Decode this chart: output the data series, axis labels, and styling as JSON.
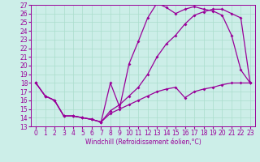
{
  "xlabel": "Windchill (Refroidissement éolien,°C)",
  "bg_color": "#cceee8",
  "line_color": "#990099",
  "xlim": [
    -0.5,
    23.5
  ],
  "ylim": [
    13,
    27
  ],
  "yticks": [
    13,
    14,
    15,
    16,
    17,
    18,
    19,
    20,
    21,
    22,
    23,
    24,
    25,
    26,
    27
  ],
  "xticks": [
    0,
    1,
    2,
    3,
    4,
    5,
    6,
    7,
    8,
    9,
    10,
    11,
    12,
    13,
    14,
    15,
    16,
    17,
    18,
    19,
    20,
    21,
    22,
    23
  ],
  "line1_x": [
    0,
    1,
    2,
    3,
    4,
    5,
    6,
    7,
    8,
    9,
    10,
    11,
    12,
    13,
    14,
    15,
    16,
    17,
    18,
    19,
    20,
    21,
    22,
    23
  ],
  "line1_y": [
    18,
    16.5,
    16,
    14.2,
    14.2,
    14,
    13.8,
    13.5,
    18.0,
    15.2,
    20.2,
    22.8,
    25.5,
    27.2,
    26.7,
    26.0,
    26.5,
    26.8,
    26.5,
    26.3,
    25.8,
    23.5,
    19.5,
    18.0
  ],
  "line2_x": [
    0,
    1,
    2,
    3,
    4,
    5,
    6,
    7,
    8,
    9,
    10,
    11,
    12,
    13,
    14,
    15,
    16,
    17,
    18,
    19,
    20,
    21,
    22,
    23
  ],
  "line2_y": [
    18,
    16.5,
    16,
    14.2,
    14.2,
    14.0,
    13.8,
    13.5,
    14.8,
    15.5,
    16.5,
    17.5,
    19.0,
    21.0,
    22.5,
    23.5,
    24.8,
    25.8,
    26.2,
    26.5,
    26.5,
    26.0,
    25.5,
    18.0
  ],
  "line3_x": [
    0,
    1,
    2,
    3,
    4,
    5,
    6,
    7,
    8,
    9,
    10,
    11,
    12,
    13,
    14,
    15,
    16,
    17,
    18,
    19,
    20,
    21,
    22,
    23
  ],
  "line3_y": [
    18,
    16.5,
    16,
    14.2,
    14.2,
    14.0,
    13.8,
    13.5,
    14.5,
    15.0,
    15.5,
    16.0,
    16.5,
    17.0,
    17.3,
    17.5,
    16.3,
    17.0,
    17.3,
    17.5,
    17.8,
    18.0,
    18.0,
    18.0
  ],
  "grid_color": "#aaddcc",
  "marker": "D",
  "markersize": 2.0,
  "linewidth": 0.9,
  "tick_fontsize": 5.5
}
